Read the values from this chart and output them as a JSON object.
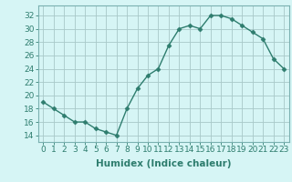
{
  "x": [
    0,
    1,
    2,
    3,
    4,
    5,
    6,
    7,
    8,
    9,
    10,
    11,
    12,
    13,
    14,
    15,
    16,
    17,
    18,
    19,
    20,
    21,
    22,
    23
  ],
  "y": [
    19,
    18,
    17,
    16,
    16,
    15,
    14.5,
    14,
    18,
    21,
    23,
    24,
    27.5,
    30,
    30.5,
    30,
    32,
    32,
    31.5,
    30.5,
    29.5,
    28.5,
    25.5,
    24
  ],
  "line_color": "#2e7d6e",
  "marker": "D",
  "marker_size": 2.5,
  "bg_color": "#d6f5f5",
  "grid_color": "#a8c8c8",
  "xlabel": "Humidex (Indice chaleur)",
  "xlim": [
    -0.5,
    23.5
  ],
  "ylim": [
    13,
    33.5
  ],
  "yticks": [
    14,
    16,
    18,
    20,
    22,
    24,
    26,
    28,
    30,
    32
  ],
  "xticks": [
    0,
    1,
    2,
    3,
    4,
    5,
    6,
    7,
    8,
    9,
    10,
    11,
    12,
    13,
    14,
    15,
    16,
    17,
    18,
    19,
    20,
    21,
    22,
    23
  ],
  "axis_fontsize": 6.5,
  "label_fontsize": 7.5
}
